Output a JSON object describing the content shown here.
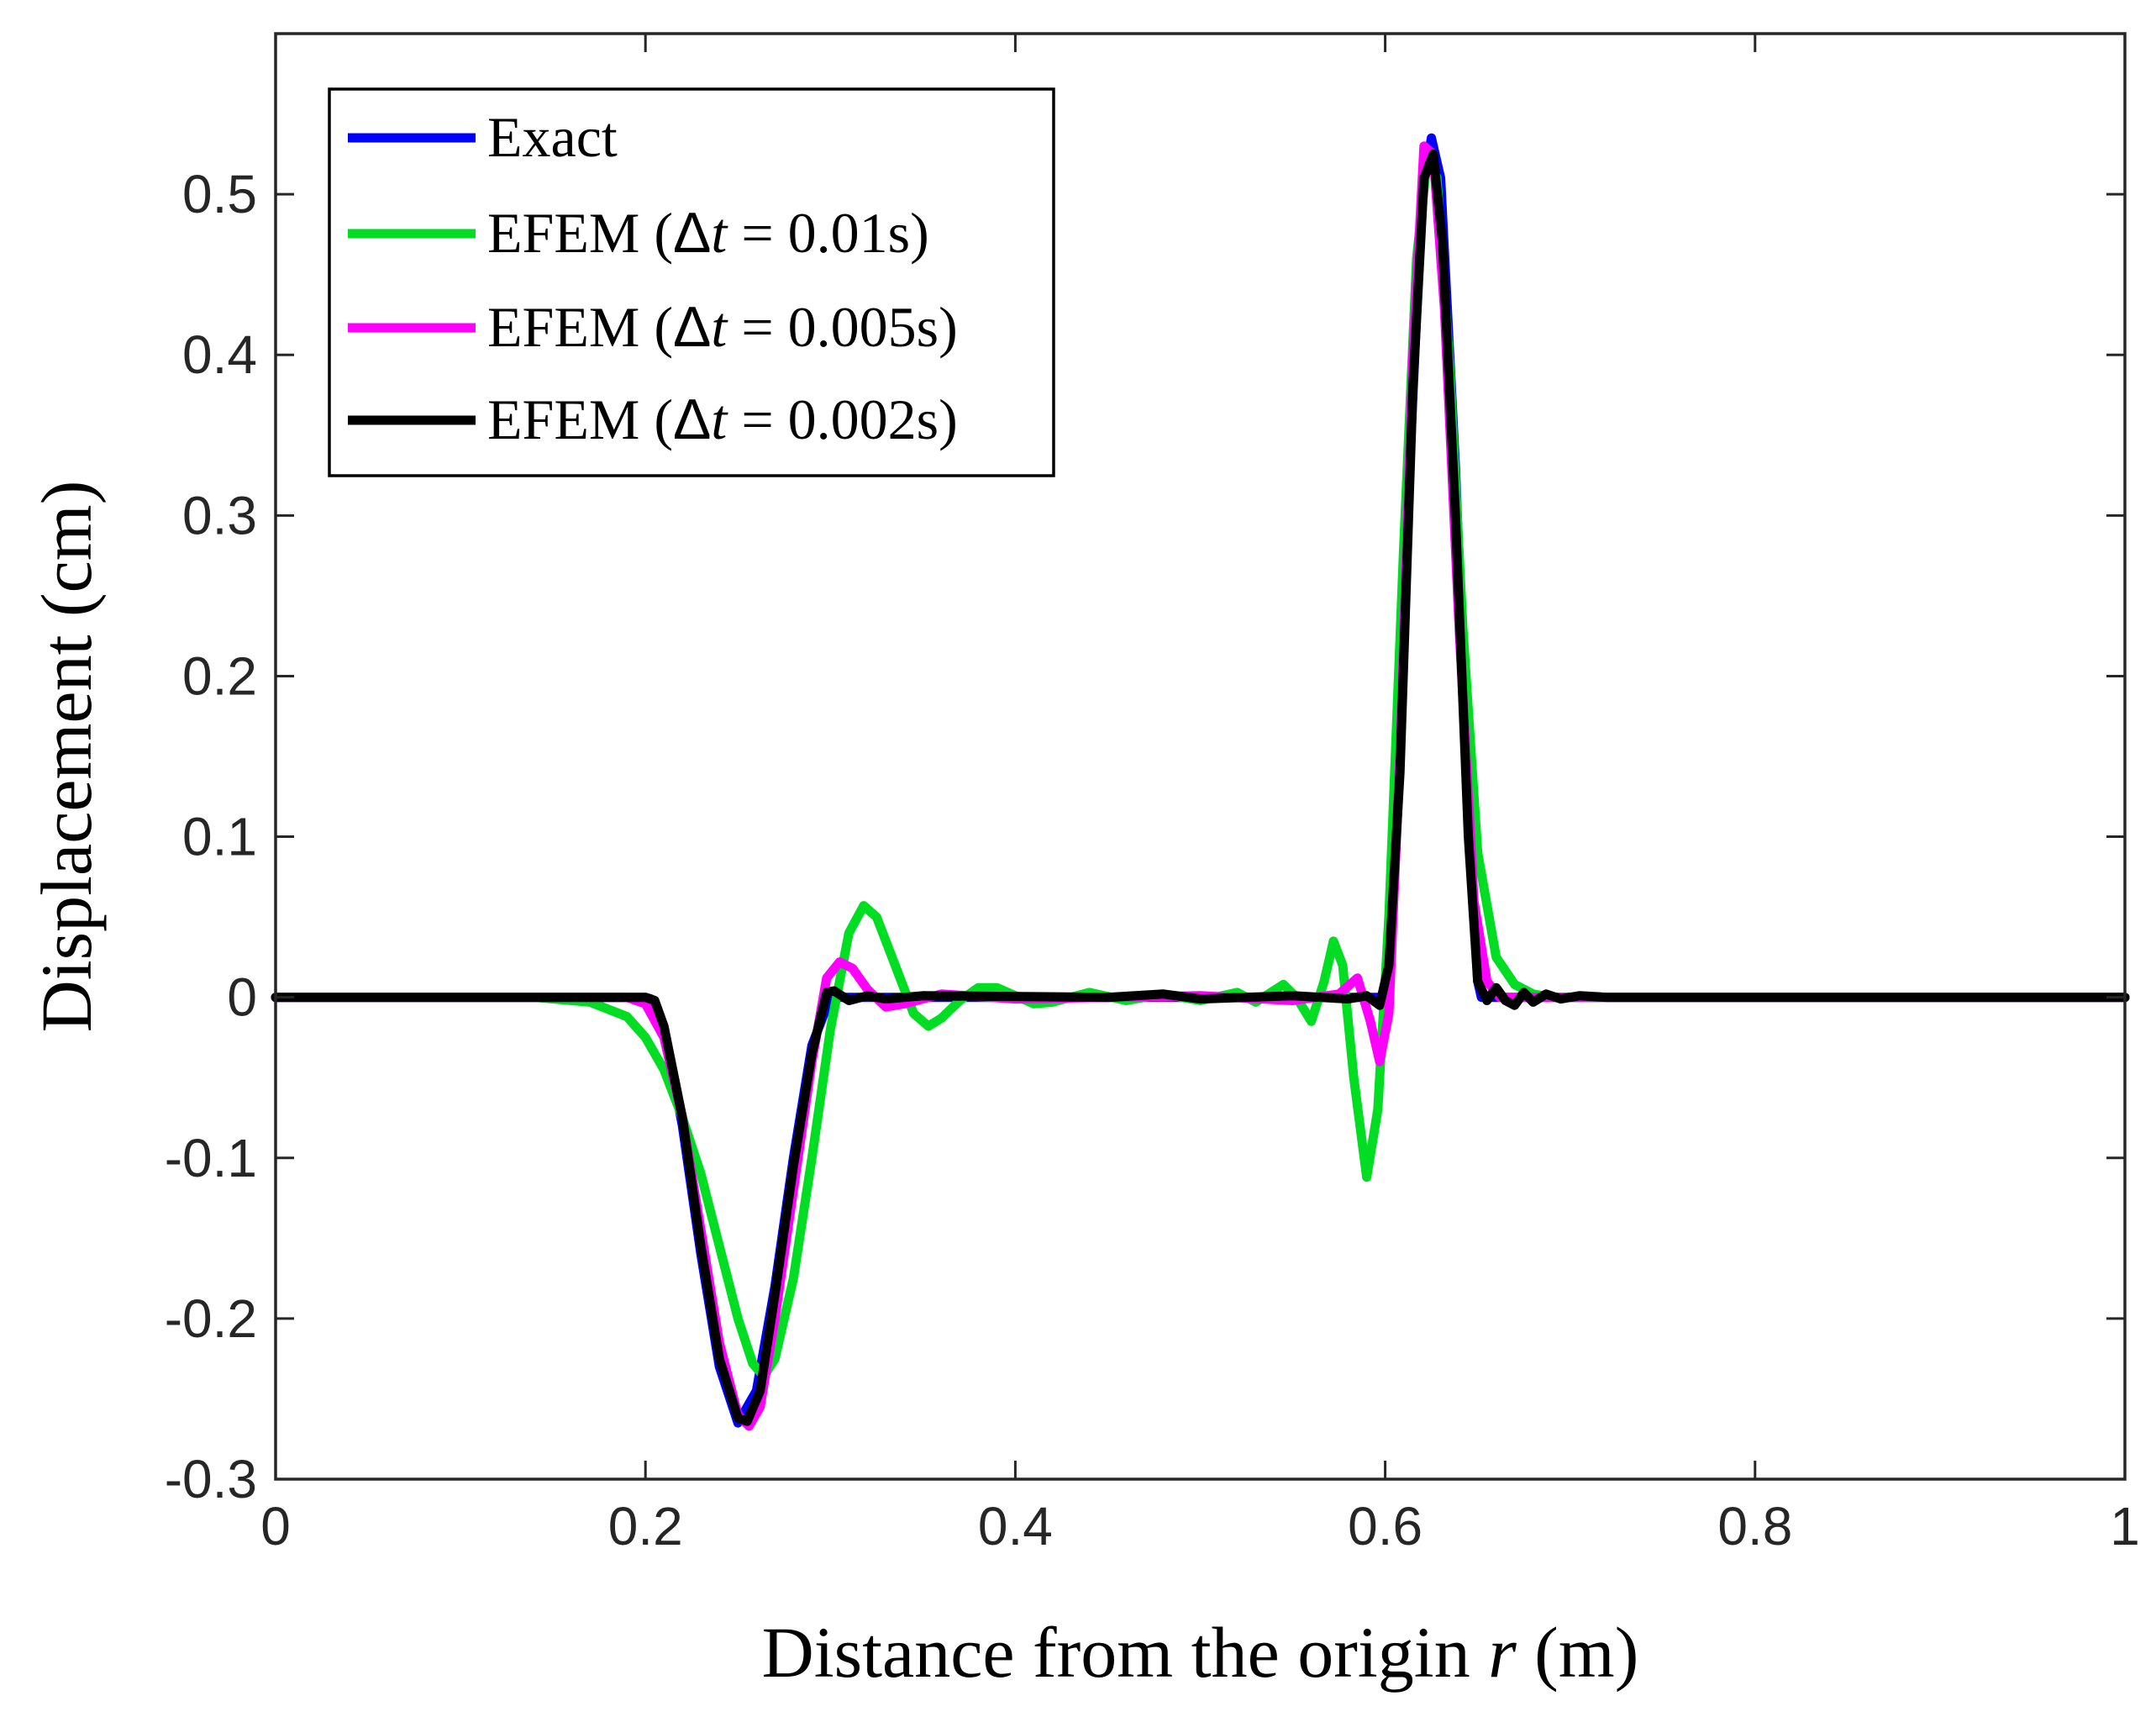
{
  "chart_data": {
    "type": "line",
    "title": "",
    "xlabel": "Distance from the origin r (m)",
    "ylabel": "Displacement (cm)",
    "xlim": [
      0,
      1
    ],
    "ylim": [
      -0.3,
      0.6
    ],
    "xticks": [
      0,
      0.2,
      0.4,
      0.6,
      0.8,
      1
    ],
    "xtick_labels": [
      "0",
      "0.2",
      "0.4",
      "0.6",
      "0.8",
      "1"
    ],
    "yticks": [
      -0.3,
      -0.2,
      -0.1,
      0,
      0.1,
      0.2,
      0.3,
      0.4,
      0.5
    ],
    "ytick_labels": [
      "-0.3",
      "-0.2",
      "-0.1",
      "0",
      "0.1",
      "0.2",
      "0.3",
      "0.4",
      "0.5"
    ],
    "grid": false,
    "legend_position": "top-left",
    "series": [
      {
        "name": "Exact",
        "legend": {
          "prefix": "Exact",
          "symbol": "",
          "var": "",
          "value": ""
        },
        "color": "#0000ff",
        "points": [
          [
            0,
            0
          ],
          [
            0.2,
            0
          ],
          [
            0.203,
            -0.001
          ],
          [
            0.21,
            -0.02
          ],
          [
            0.22,
            -0.08
          ],
          [
            0.23,
            -0.16
          ],
          [
            0.24,
            -0.23
          ],
          [
            0.25,
            -0.265
          ],
          [
            0.26,
            -0.245
          ],
          [
            0.27,
            -0.18
          ],
          [
            0.28,
            -0.1
          ],
          [
            0.29,
            -0.03
          ],
          [
            0.3,
            0
          ],
          [
            0.35,
            0
          ],
          [
            0.6,
            0
          ],
          [
            0.605,
            0.09
          ],
          [
            0.612,
            0.3
          ],
          [
            0.62,
            0.5
          ],
          [
            0.625,
            0.535
          ],
          [
            0.63,
            0.51
          ],
          [
            0.638,
            0.33
          ],
          [
            0.645,
            0.12
          ],
          [
            0.65,
            0.01
          ],
          [
            0.652,
            0
          ],
          [
            1,
            0
          ]
        ]
      },
      {
        "name": "EFEM (Δt = 0.01s)",
        "legend": {
          "prefix": "EFEM (",
          "symbol": "Δ",
          "var": "t",
          "value": " = 0.01s)"
        },
        "color": "#00dd22",
        "points": [
          [
            0,
            0
          ],
          [
            0.14,
            0
          ],
          [
            0.17,
            -0.003
          ],
          [
            0.19,
            -0.012
          ],
          [
            0.2,
            -0.025
          ],
          [
            0.21,
            -0.045
          ],
          [
            0.22,
            -0.075
          ],
          [
            0.23,
            -0.11
          ],
          [
            0.24,
            -0.155
          ],
          [
            0.25,
            -0.2
          ],
          [
            0.258,
            -0.228
          ],
          [
            0.264,
            -0.236
          ],
          [
            0.27,
            -0.225
          ],
          [
            0.28,
            -0.175
          ],
          [
            0.29,
            -0.1
          ],
          [
            0.3,
            -0.02
          ],
          [
            0.31,
            0.04
          ],
          [
            0.318,
            0.057
          ],
          [
            0.325,
            0.05
          ],
          [
            0.335,
            0.02
          ],
          [
            0.345,
            -0.01
          ],
          [
            0.353,
            -0.018
          ],
          [
            0.36,
            -0.013
          ],
          [
            0.37,
            -0.002
          ],
          [
            0.38,
            0.006
          ],
          [
            0.39,
            0.006
          ],
          [
            0.4,
            0.001
          ],
          [
            0.41,
            -0.004
          ],
          [
            0.42,
            -0.003
          ],
          [
            0.44,
            0.003
          ],
          [
            0.46,
            -0.002
          ],
          [
            0.48,
            0.002
          ],
          [
            0.5,
            -0.002
          ],
          [
            0.52,
            0.003
          ],
          [
            0.53,
            -0.003
          ],
          [
            0.545,
            0.008
          ],
          [
            0.552,
            0
          ],
          [
            0.56,
            -0.015
          ],
          [
            0.567,
            0.01
          ],
          [
            0.572,
            0.035
          ],
          [
            0.577,
            0.02
          ],
          [
            0.583,
            -0.05
          ],
          [
            0.59,
            -0.112
          ],
          [
            0.596,
            -0.07
          ],
          [
            0.602,
            0.05
          ],
          [
            0.61,
            0.28
          ],
          [
            0.617,
            0.46
          ],
          [
            0.623,
            0.525
          ],
          [
            0.628,
            0.51
          ],
          [
            0.635,
            0.39
          ],
          [
            0.642,
            0.23
          ],
          [
            0.65,
            0.09
          ],
          [
            0.66,
            0.025
          ],
          [
            0.67,
            0.008
          ],
          [
            0.68,
            0.002
          ],
          [
            0.69,
            0
          ],
          [
            1,
            0
          ]
        ]
      },
      {
        "name": "EFEM (Δt = 0.005s)",
        "legend": {
          "prefix": "EFEM (",
          "symbol": "Δ",
          "var": "t",
          "value": " = 0.005s)"
        },
        "color": "#ff00ff",
        "points": [
          [
            0,
            0
          ],
          [
            0.19,
            0
          ],
          [
            0.2,
            -0.004
          ],
          [
            0.21,
            -0.025
          ],
          [
            0.22,
            -0.075
          ],
          [
            0.23,
            -0.145
          ],
          [
            0.24,
            -0.215
          ],
          [
            0.25,
            -0.26
          ],
          [
            0.256,
            -0.267
          ],
          [
            0.262,
            -0.255
          ],
          [
            0.27,
            -0.2
          ],
          [
            0.28,
            -0.12
          ],
          [
            0.29,
            -0.04
          ],
          [
            0.298,
            0.012
          ],
          [
            0.305,
            0.022
          ],
          [
            0.312,
            0.018
          ],
          [
            0.32,
            0.005
          ],
          [
            0.33,
            -0.006
          ],
          [
            0.34,
            -0.004
          ],
          [
            0.36,
            0.002
          ],
          [
            0.4,
            -0.001
          ],
          [
            0.5,
            0.001
          ],
          [
            0.55,
            -0.002
          ],
          [
            0.575,
            0.002
          ],
          [
            0.585,
            0.012
          ],
          [
            0.592,
            -0.015
          ],
          [
            0.597,
            -0.04
          ],
          [
            0.602,
            -0.01
          ],
          [
            0.608,
            0.15
          ],
          [
            0.615,
            0.4
          ],
          [
            0.621,
            0.53
          ],
          [
            0.626,
            0.525
          ],
          [
            0.632,
            0.43
          ],
          [
            0.64,
            0.23
          ],
          [
            0.648,
            0.06
          ],
          [
            0.655,
            0.01
          ],
          [
            0.662,
            0
          ],
          [
            1,
            0
          ]
        ]
      },
      {
        "name": "EFEM (Δt = 0.002s)",
        "legend": {
          "prefix": "EFEM (",
          "symbol": "Δ",
          "var": "t",
          "value": " = 0.002s)"
        },
        "color": "#000000",
        "points": [
          [
            0,
            0
          ],
          [
            0.2,
            0
          ],
          [
            0.205,
            -0.002
          ],
          [
            0.21,
            -0.018
          ],
          [
            0.22,
            -0.075
          ],
          [
            0.23,
            -0.155
          ],
          [
            0.24,
            -0.225
          ],
          [
            0.25,
            -0.262
          ],
          [
            0.255,
            -0.264
          ],
          [
            0.262,
            -0.245
          ],
          [
            0.27,
            -0.185
          ],
          [
            0.28,
            -0.105
          ],
          [
            0.29,
            -0.035
          ],
          [
            0.298,
            0.003
          ],
          [
            0.302,
            0.004
          ],
          [
            0.31,
            -0.002
          ],
          [
            0.32,
            0.001
          ],
          [
            0.33,
            -0.001
          ],
          [
            0.35,
            0.001
          ],
          [
            0.45,
            0
          ],
          [
            0.48,
            0.002
          ],
          [
            0.5,
            -0.001
          ],
          [
            0.55,
            0.001
          ],
          [
            0.58,
            -0.001
          ],
          [
            0.59,
            0.001
          ],
          [
            0.597,
            -0.005
          ],
          [
            0.602,
            0.02
          ],
          [
            0.608,
            0.14
          ],
          [
            0.615,
            0.38
          ],
          [
            0.621,
            0.51
          ],
          [
            0.626,
            0.525
          ],
          [
            0.631,
            0.47
          ],
          [
            0.638,
            0.3
          ],
          [
            0.645,
            0.1
          ],
          [
            0.65,
            0.01
          ],
          [
            0.655,
            -0.002
          ],
          [
            0.66,
            0.006
          ],
          [
            0.665,
            -0.002
          ],
          [
            0.67,
            -0.005
          ],
          [
            0.675,
            0.003
          ],
          [
            0.68,
            -0.003
          ],
          [
            0.687,
            0.002
          ],
          [
            0.695,
            -0.001
          ],
          [
            0.705,
            0.001
          ],
          [
            0.72,
            0
          ],
          [
            1,
            0
          ]
        ]
      }
    ]
  }
}
